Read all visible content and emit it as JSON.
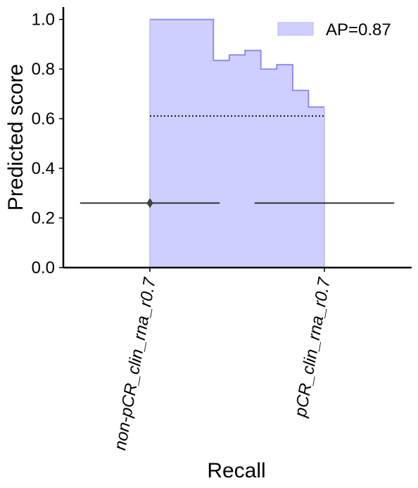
{
  "chart_data": {
    "type": "area",
    "title": "",
    "xlabel": "Recall",
    "ylabel": "Predicted score",
    "ylim": [
      0,
      1.05
    ],
    "xlim": [
      -0.4,
      1.5
    ],
    "yticks": [
      0.0,
      0.2,
      0.4,
      0.6,
      0.8,
      1.0
    ],
    "ytick_labels": [
      "0.0",
      "0.2",
      "0.4",
      "0.6",
      "0.8",
      "1.0"
    ],
    "categories": [
      "non-pCR_clin_rna_r0.7",
      "pCR_clin_rna_r0.7"
    ],
    "grid": false,
    "legend": {
      "position": "top-right",
      "entries": [
        "AP=0.87"
      ]
    },
    "colors": {
      "fill": "#cfcfff",
      "edge": "#8585f2",
      "line": "#333333",
      "axis": "#000000"
    },
    "series": [
      {
        "name": "AP=0.87",
        "kind": "step-area",
        "x": [
          0.0,
          0.364,
          0.364,
          0.455,
          0.455,
          0.545,
          0.545,
          0.636,
          0.636,
          0.727,
          0.727,
          0.818,
          0.818,
          0.909,
          0.909,
          1.0
        ],
        "y": [
          1.0,
          1.0,
          0.835,
          0.835,
          0.857,
          0.857,
          0.875,
          0.875,
          0.8,
          0.8,
          0.818,
          0.818,
          0.714,
          0.714,
          0.647,
          0.647
        ]
      },
      {
        "name": "prevalence",
        "kind": "dotted-line",
        "x": [
          0.0,
          1.0
        ],
        "y": [
          0.611,
          0.611
        ]
      },
      {
        "name": "whisker-left",
        "kind": "line",
        "x": [
          -0.4,
          0.4
        ],
        "y": [
          0.26,
          0.26
        ]
      },
      {
        "name": "whisker-right",
        "kind": "line",
        "x": [
          0.6,
          1.4
        ],
        "y": [
          0.26,
          0.26
        ]
      },
      {
        "name": "median-marker",
        "kind": "diamond",
        "x": [
          0.0
        ],
        "y": [
          0.26
        ]
      }
    ]
  }
}
